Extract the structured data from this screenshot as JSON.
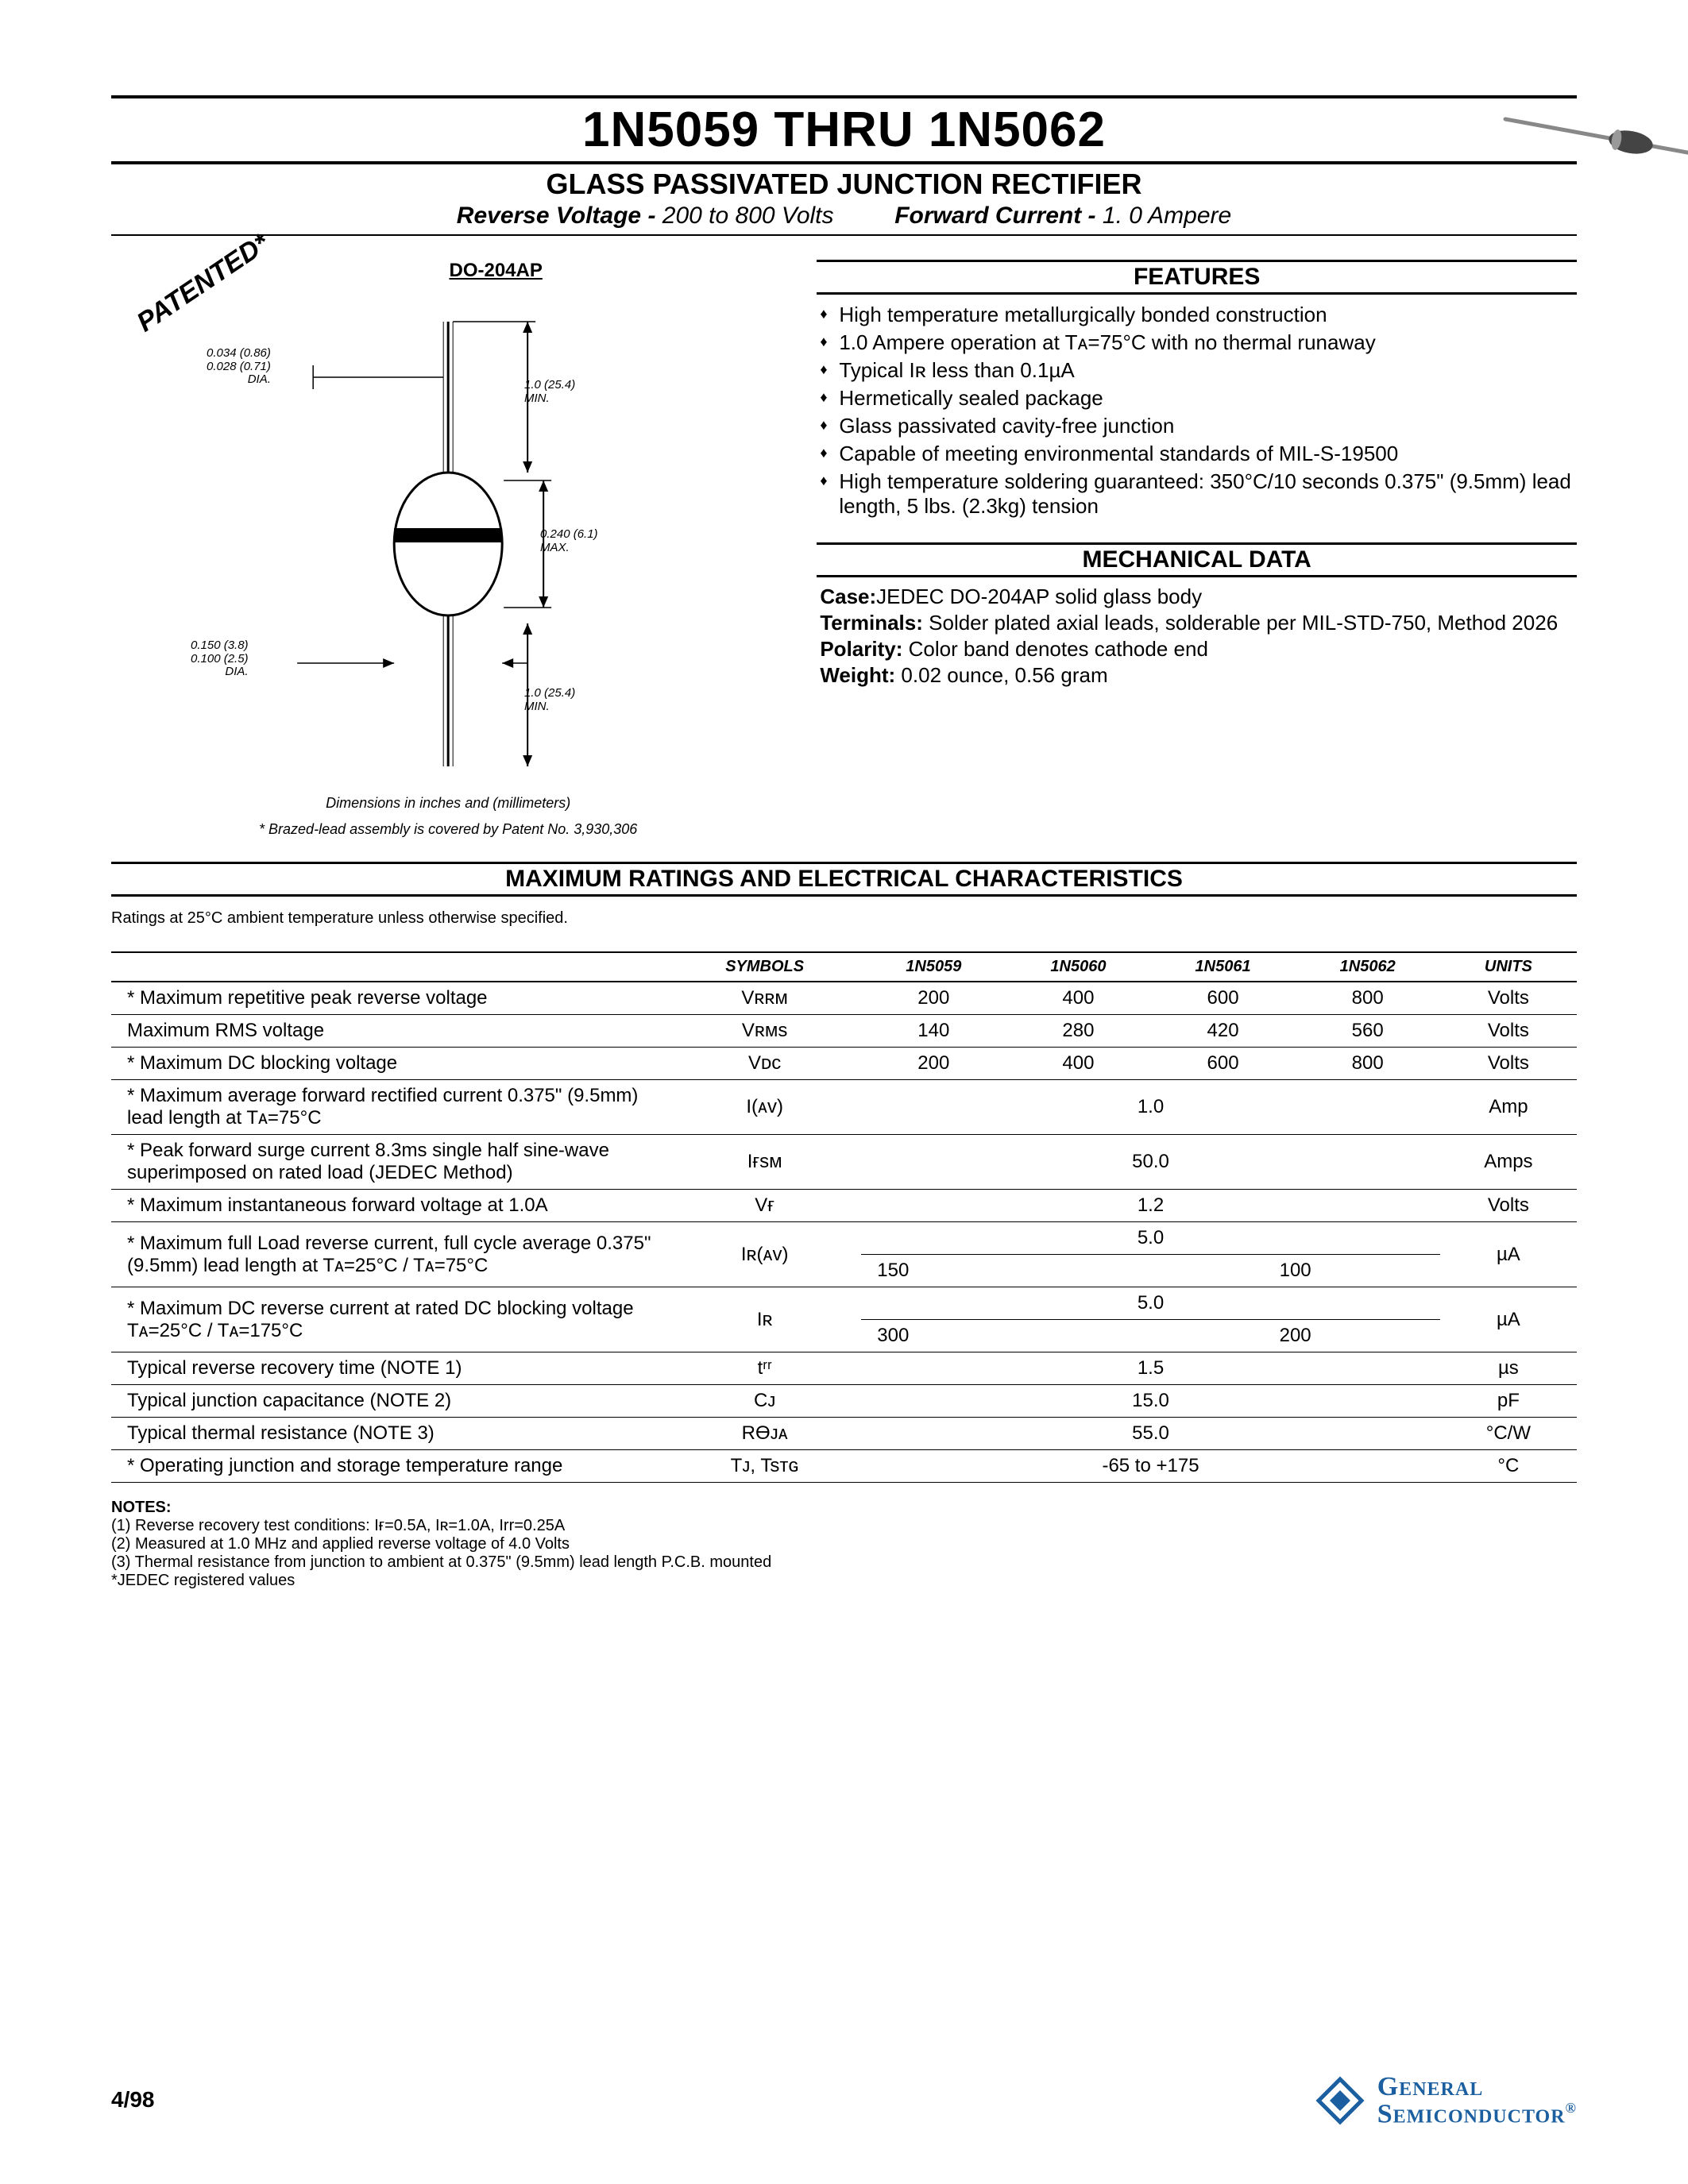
{
  "header": {
    "title": "1N5059 THRU 1N5062",
    "subtitle": "GLASS PASSIVATED JUNCTION RECTIFIER",
    "rev_voltage_label": "Reverse Voltage -",
    "rev_voltage_value": "200 to 800 Volts",
    "fwd_current_label": "Forward Current -",
    "fwd_current_value": "1. 0 Ampere"
  },
  "package": {
    "label": "DO-204AP",
    "patented": "PATENTED*",
    "dim_note": "Dimensions in inches and (millimeters)",
    "patent_note": "* Brazed-lead assembly is covered by Patent No. 3,930,306",
    "dims": {
      "lead_dia": "0.034 (0.86)\n0.028 (0.71)\nDIA.",
      "lead_len_top": "1.0 (25.4)\nMIN.",
      "body_len": "0.240 (6.1)\nMAX.",
      "body_dia": "0.150 (3.8)\n0.100 (2.5)\nDIA.",
      "lead_len_bot": "1.0 (25.4)\nMIN."
    }
  },
  "features": {
    "heading": "FEATURES",
    "items": [
      "High temperature metallurgically bonded construction",
      "1.0 Ampere operation at Tᴀ=75°C with no thermal runaway",
      "Typical Iʀ less than 0.1µA",
      "Hermetically sealed package",
      "Glass passivated cavity-free junction",
      "Capable of meeting environmental standards of MIL-S-19500",
      "High temperature soldering guaranteed: 350°C/10 seconds 0.375\" (9.5mm) lead length, 5 lbs. (2.3kg) tension"
    ]
  },
  "mechanical": {
    "heading": "MECHANICAL DATA",
    "case_label": "Case:",
    "case_value": "JEDEC DO-204AP solid glass body",
    "terminals_label": "Terminals:",
    "terminals_value": "Solder plated axial leads, solderable per MIL-STD-750, Method 2026",
    "polarity_label": "Polarity:",
    "polarity_value": "Color band denotes cathode end",
    "weight_label": "Weight:",
    "weight_value": "0.02 ounce, 0.56 gram"
  },
  "ratings": {
    "heading": "MAXIMUM RATINGS AND ELECTRICAL CHARACTERISTICS",
    "condition": "Ratings at 25°C ambient temperature unless otherwise specified.",
    "columns": [
      "",
      "SYMBOLS",
      "1N5059",
      "1N5060",
      "1N5061",
      "1N5062",
      "UNITS"
    ],
    "rows": [
      {
        "param": "* Maximum repetitive peak reverse voltage",
        "sym": "Vʀʀᴍ",
        "v": [
          "200",
          "400",
          "600",
          "800"
        ],
        "unit": "Volts"
      },
      {
        "param": "  Maximum RMS voltage",
        "sym": "Vʀᴍs",
        "v": [
          "140",
          "280",
          "420",
          "560"
        ],
        "unit": "Volts"
      },
      {
        "param": "* Maximum DC blocking voltage",
        "sym": "Vᴅᴄ",
        "v": [
          "200",
          "400",
          "600",
          "800"
        ],
        "unit": "Volts"
      },
      {
        "param": "* Maximum average forward rectified current 0.375\" (9.5mm) lead length at Tᴀ=75°C",
        "sym": "I(ᴀᴠ)",
        "span": "1.0",
        "unit": "Amp"
      },
      {
        "param": "* Peak forward surge current 8.3ms single half sine-wave superimposed on rated load (JEDEC Method)",
        "sym": "Iғsᴍ",
        "span": "50.0",
        "unit": "Amps"
      },
      {
        "param": "* Maximum instantaneous forward voltage at 1.0A",
        "sym": "Vғ",
        "span": "1.2",
        "unit": "Volts"
      },
      {
        "param": "* Maximum full Load reverse current, full cycle average 0.375\" (9.5mm) lead length at    Tᴀ=25°C / Tᴀ=75°C",
        "sym": "Iʀ(ᴀᴠ)",
        "dual": [
          [
            "5.0"
          ],
          [
            "150",
            "100"
          ]
        ],
        "unit": "µA"
      },
      {
        "param": "* Maximum DC reverse current at rated DC blocking voltage    Tᴀ=25°C / Tᴀ=175°C",
        "sym": "Iʀ",
        "dual": [
          [
            "5.0"
          ],
          [
            "300",
            "200"
          ]
        ],
        "unit": "µA"
      },
      {
        "param": "  Typical reverse recovery time (NOTE 1)",
        "sym": "tʳʳ",
        "span": "1.5",
        "unit": "µs"
      },
      {
        "param": "  Typical junction capacitance (NOTE 2)",
        "sym": "Cᴊ",
        "span": "15.0",
        "unit": "pF"
      },
      {
        "param": "  Typical thermal resistance (NOTE 3)",
        "sym": "RӨᴊᴀ",
        "span": "55.0",
        "unit": "°C/W"
      },
      {
        "param": "* Operating junction and storage temperature range",
        "sym": "Tᴊ, Tsᴛɢ",
        "span": "-65 to +175",
        "unit": "°C"
      }
    ]
  },
  "notes": {
    "heading": "NOTES:",
    "items": [
      "(1) Reverse recovery test conditions: Iғ=0.5A, Iʀ=1.0A, Irr=0.25A",
      "(2) Measured at 1.0 MHz and applied reverse voltage of 4.0 Volts",
      "(3) Thermal resistance from junction to ambient at 0.375\" (9.5mm) lead length P.C.B. mounted",
      "     *JEDEC registered values"
    ]
  },
  "footer": {
    "date": "4/98",
    "logo_line1": "General",
    "logo_line2": "Semiconductor",
    "logo_color": "#1b5fa0"
  }
}
